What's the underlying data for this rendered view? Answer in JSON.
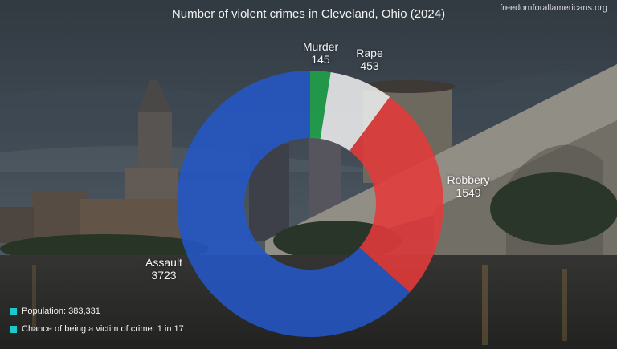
{
  "site": "freedomforallamericans.org",
  "chart_data": {
    "type": "pie",
    "title": "Number of violent crimes in Cleveland, Ohio (2024)",
    "donut": true,
    "categories": [
      "Murder",
      "Rape",
      "Robbery",
      "Assault"
    ],
    "values": [
      145,
      453,
      1549,
      3723
    ],
    "colors": [
      "#1fa34a",
      "#ececec",
      "#e43a3a",
      "#2456c6"
    ]
  },
  "legend": {
    "swatch_color": "#1ec9c9",
    "items": [
      "Population: 383,331",
      "Chance of being a victim of crime: 1 in 17"
    ]
  }
}
